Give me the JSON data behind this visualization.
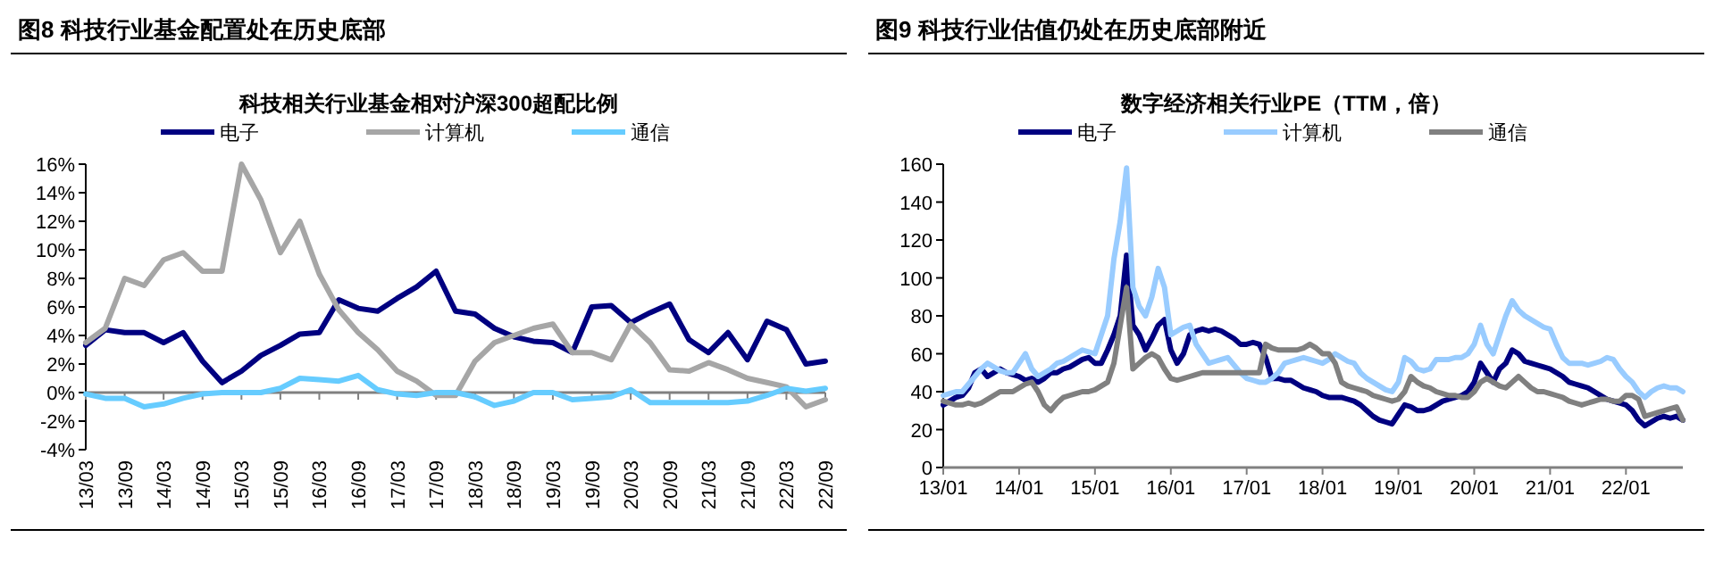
{
  "chart_data": [
    {
      "type": "line",
      "title": "图8  科技行业基金配置处在历史底部",
      "subtitle": "科技相关行业基金相对沪深300超配比例",
      "categories": [
        "13/03",
        null,
        "13/09",
        null,
        "14/03",
        null,
        "14/09",
        null,
        "15/03",
        null,
        "15/09",
        null,
        "16/03",
        null,
        "16/09",
        null,
        "17/03",
        null,
        "17/09",
        null,
        "18/03",
        null,
        "18/09",
        null,
        "19/03",
        null,
        "19/09",
        null,
        "20/03",
        null,
        "20/09",
        null,
        "21/03",
        null,
        "21/09",
        null,
        "22/03",
        null,
        "22/09"
      ],
      "ylim": [
        -4,
        16
      ],
      "yticks": [
        {
          "value": -4,
          "label": "-4%"
        },
        {
          "value": -2,
          "label": "-2%"
        },
        {
          "value": 0,
          "label": "0%"
        },
        {
          "value": 2,
          "label": "2%"
        },
        {
          "value": 4,
          "label": "4%"
        },
        {
          "value": 6,
          "label": "6%"
        },
        {
          "value": 8,
          "label": "8%"
        },
        {
          "value": 10,
          "label": "10%"
        },
        {
          "value": 12,
          "label": "12%"
        },
        {
          "value": 14,
          "label": "14%"
        },
        {
          "value": 16,
          "label": "16%"
        }
      ],
      "legend": "top",
      "series": [
        {
          "name": "电子",
          "color": "#000080",
          "values": [
            3.3,
            4.4,
            4.2,
            4.2,
            3.5,
            4.2,
            2.2,
            0.7,
            1.5,
            2.6,
            3.3,
            4.1,
            4.2,
            6.5,
            5.9,
            5.7,
            6.6,
            7.4,
            8.5,
            5.7,
            5.5,
            4.5,
            3.9,
            3.6,
            3.5,
            2.8,
            6.0,
            6.1,
            4.9,
            5.6,
            6.2,
            3.7,
            2.8,
            4.2,
            2.3,
            5.0,
            4.4,
            2.0,
            2.2
          ]
        },
        {
          "name": "计算机",
          "color": "#a6a6a6",
          "values": [
            3.5,
            4.5,
            8.0,
            7.5,
            9.3,
            9.8,
            8.5,
            8.5,
            16,
            13.5,
            9.8,
            12.0,
            8.3,
            5.8,
            4.2,
            3.0,
            1.5,
            0.8,
            -0.2,
            -0.2,
            2.2,
            3.5,
            4.0,
            4.5,
            4.8,
            2.8,
            2.8,
            2.3,
            4.8,
            3.5,
            1.6,
            1.5,
            2.1,
            1.6,
            1.0,
            0.7,
            0.4,
            -1.0,
            -0.5
          ]
        },
        {
          "name": "通信",
          "color": "#66ccff",
          "values": [
            -0.1,
            -0.4,
            -0.4,
            -1.0,
            -0.8,
            -0.4,
            -0.1,
            0.0,
            0.0,
            0.0,
            0.3,
            1.0,
            0.9,
            0.8,
            1.2,
            0.2,
            -0.1,
            -0.2,
            0.0,
            0.0,
            -0.3,
            -0.9,
            -0.6,
            0.0,
            0.0,
            -0.5,
            -0.4,
            -0.3,
            0.2,
            -0.7,
            -0.7,
            -0.7,
            -0.7,
            -0.7,
            -0.6,
            -0.2,
            0.3,
            0.1,
            0.3
          ]
        }
      ]
    },
    {
      "type": "line",
      "title": "图9  科技行业估值仍处在历史底部附近",
      "subtitle": "数字经济相关行业PE（TTM，倍）",
      "categories": [
        "13/01",
        null,
        null,
        null,
        null,
        null,
        null,
        null,
        null,
        null,
        null,
        null,
        "14/01",
        null,
        null,
        null,
        null,
        null,
        null,
        null,
        null,
        null,
        null,
        null,
        "15/01",
        null,
        null,
        null,
        null,
        null,
        null,
        null,
        null,
        null,
        null,
        null,
        "16/01",
        null,
        null,
        null,
        null,
        null,
        null,
        null,
        null,
        null,
        null,
        null,
        "17/01",
        null,
        null,
        null,
        null,
        null,
        null,
        null,
        null,
        null,
        null,
        null,
        "18/01",
        null,
        null,
        null,
        null,
        null,
        null,
        null,
        null,
        null,
        null,
        null,
        "19/01",
        null,
        null,
        null,
        null,
        null,
        null,
        null,
        null,
        null,
        null,
        null,
        "20/01",
        null,
        null,
        null,
        null,
        null,
        null,
        null,
        null,
        null,
        null,
        null,
        "21/01",
        null,
        null,
        null,
        null,
        null,
        null,
        null,
        null,
        null,
        null,
        null,
        "22/01",
        null,
        null,
        null,
        null,
        null,
        null,
        null,
        null,
        null
      ],
      "ylim": [
        0,
        160
      ],
      "yticks": [
        0,
        20,
        40,
        60,
        80,
        100,
        120,
        140,
        160
      ],
      "legend": "top",
      "series": [
        {
          "name": "电子",
          "color": "#000080",
          "values": [
            33,
            35,
            37,
            38,
            42,
            50,
            52,
            48,
            50,
            52,
            50,
            49,
            48,
            46,
            47,
            45,
            47,
            50,
            50,
            52,
            53,
            55,
            57,
            58,
            55,
            55,
            62,
            70,
            80,
            112,
            75,
            70,
            62,
            68,
            75,
            78,
            62,
            55,
            60,
            70,
            72,
            73,
            72,
            73,
            72,
            70,
            68,
            65,
            65,
            66,
            65,
            58,
            47,
            47,
            46,
            46,
            44,
            42,
            41,
            40,
            38,
            37,
            37,
            37,
            36,
            35,
            33,
            30,
            27,
            25,
            24,
            23,
            28,
            33,
            32,
            30,
            30,
            31,
            33,
            35,
            36,
            37,
            38,
            40,
            45,
            55,
            50,
            45,
            52,
            55,
            62,
            60,
            56,
            55,
            54,
            53,
            52,
            50,
            48,
            45,
            44,
            43,
            42,
            40,
            38,
            36,
            35,
            34,
            33,
            30,
            25,
            22,
            24,
            26,
            27,
            26,
            27,
            25
          ]
        },
        {
          "name": "计算机",
          "color": "#99ccff",
          "values": [
            38,
            39,
            40,
            40,
            44,
            48,
            52,
            55,
            53,
            51,
            50,
            50,
            55,
            60,
            52,
            48,
            50,
            52,
            55,
            56,
            58,
            60,
            62,
            61,
            60,
            70,
            80,
            110,
            130,
            158,
            95,
            85,
            80,
            90,
            105,
            95,
            70,
            72,
            74,
            75,
            65,
            60,
            55,
            56,
            57,
            58,
            54,
            50,
            47,
            46,
            45,
            45,
            47,
            50,
            55,
            56,
            57,
            58,
            57,
            56,
            55,
            57,
            60,
            58,
            56,
            55,
            50,
            47,
            45,
            43,
            41,
            40,
            45,
            58,
            56,
            52,
            51,
            52,
            57,
            57,
            57,
            58,
            58,
            60,
            65,
            75,
            65,
            60,
            70,
            80,
            88,
            83,
            80,
            78,
            76,
            74,
            73,
            65,
            58,
            55,
            55,
            55,
            54,
            55,
            56,
            58,
            57,
            52,
            48,
            45,
            40,
            37,
            40,
            42,
            43,
            42,
            42,
            40
          ]
        },
        {
          "name": "通信",
          "color": "#808080",
          "values": [
            35,
            34,
            33,
            33,
            34,
            33,
            34,
            36,
            38,
            40,
            40,
            40,
            42,
            44,
            45,
            40,
            33,
            30,
            34,
            37,
            38,
            39,
            40,
            40,
            41,
            43,
            45,
            55,
            75,
            95,
            52,
            55,
            58,
            60,
            58,
            52,
            47,
            46,
            47,
            48,
            49,
            50,
            50,
            50,
            50,
            50,
            50,
            50,
            50,
            50,
            50,
            65,
            63,
            62,
            62,
            62,
            62,
            63,
            65,
            63,
            60,
            60,
            55,
            45,
            43,
            42,
            41,
            40,
            38,
            37,
            36,
            35,
            36,
            40,
            48,
            45,
            43,
            42,
            40,
            39,
            38,
            38,
            37,
            37,
            40,
            45,
            47,
            45,
            43,
            42,
            45,
            48,
            45,
            42,
            40,
            40,
            39,
            38,
            37,
            35,
            34,
            33,
            34,
            35,
            36,
            36,
            35,
            35,
            38,
            38,
            36,
            27,
            28,
            29,
            30,
            31,
            32,
            25
          ]
        }
      ]
    }
  ]
}
